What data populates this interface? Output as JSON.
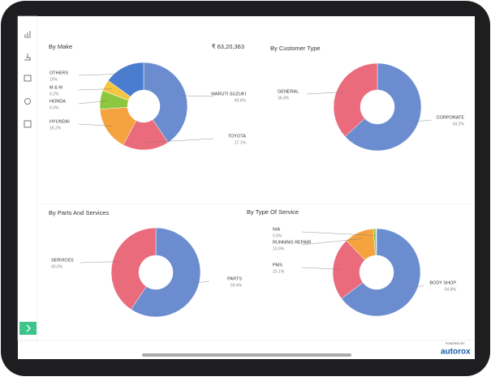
{
  "chart_data": [
    {
      "type": "pie",
      "title": "By Make",
      "annotation": "₹ 63,20,363",
      "categories": [
        "MARUTI SUZUKI",
        "TOYOTA",
        "HYUNDAI",
        "HONDA",
        "M & M",
        "OTHERS"
      ],
      "values": [
        40.6,
        17.1,
        16.2,
        6.9,
        4.2,
        15
      ],
      "value_labels": [
        "40.6%",
        "17.1%",
        "16.2%",
        "6.9%",
        "4.2%",
        "15%"
      ],
      "colors": [
        "#6b8dd0",
        "#ea6b7b",
        "#f4a33f",
        "#8dc63f",
        "#f5c542",
        "#4a7ccf"
      ]
    },
    {
      "type": "pie",
      "title": "By Customer Type",
      "categories": [
        "CORPORATE",
        "GENERAL"
      ],
      "values": [
        63.2,
        36.8
      ],
      "value_labels": [
        "63.2%",
        "36.8%"
      ],
      "colors": [
        "#6b8dd0",
        "#ea6b7b"
      ]
    },
    {
      "type": "pie",
      "title": "By Parts And Services",
      "categories": [
        "PARTS",
        "SERVICES"
      ],
      "values": [
        59.4,
        40.6
      ],
      "value_labels": [
        "59.4%",
        "40.6%"
      ],
      "colors": [
        "#6b8dd0",
        "#ea6b7b"
      ]
    },
    {
      "type": "pie",
      "title": "By Type Of Service",
      "categories": [
        "BODY SHOP",
        "PMS",
        "RUNNING REPAIR",
        "N/A"
      ],
      "values": [
        64.8,
        23.1,
        10.9,
        0.9
      ],
      "value_labels": [
        "64.8%",
        "23.1%",
        "10.9%",
        "0.9%"
      ],
      "colors": [
        "#6b8dd0",
        "#ea6b7b",
        "#f4a33f",
        "#8dc63f"
      ]
    }
  ],
  "footer": {
    "powered_by": "POWERED BY",
    "brand": "autorox"
  }
}
